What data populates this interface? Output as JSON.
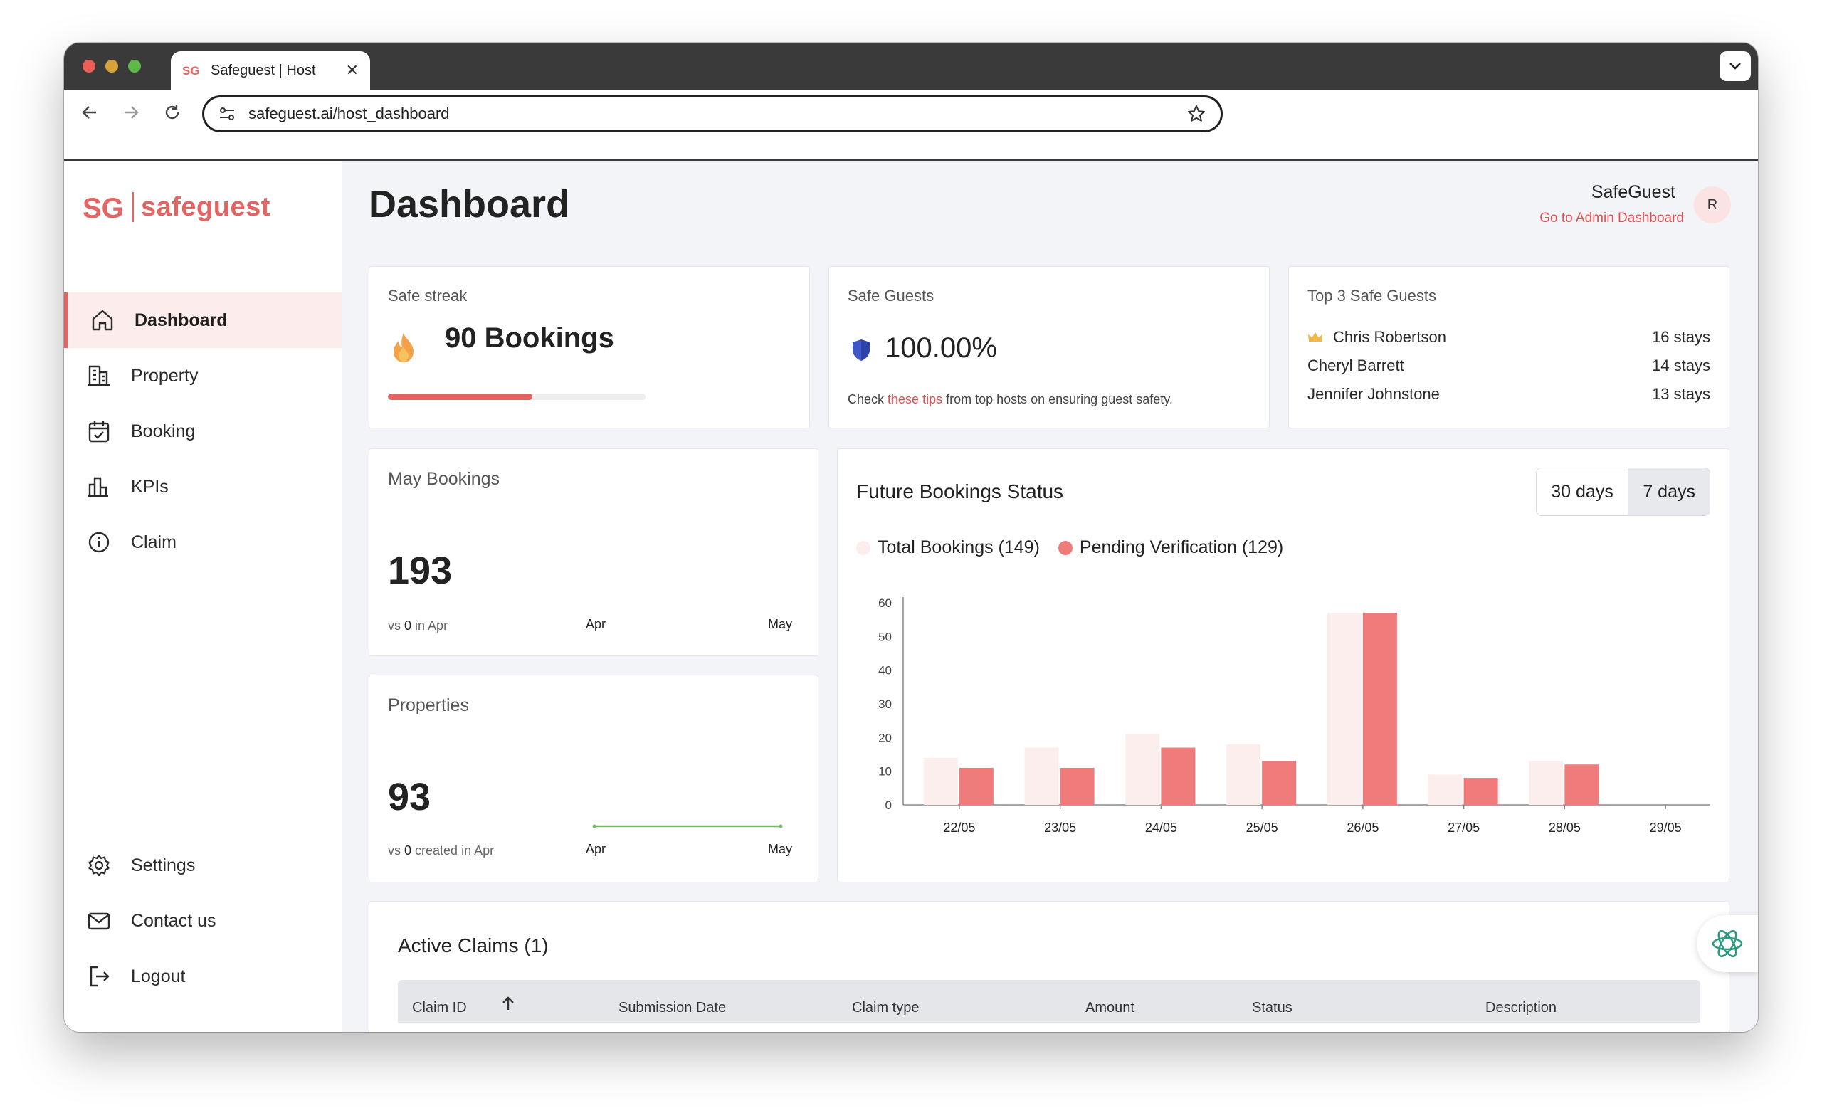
{
  "browser": {
    "tab_title": "Safeguest | Host",
    "url": "safeguest.ai/host_dashboard"
  },
  "sidebar": {
    "logo_text": "safeguest",
    "items": [
      {
        "label": "Dashboard",
        "icon": "home-icon",
        "active": true
      },
      {
        "label": "Property",
        "icon": "building-icon"
      },
      {
        "label": "Booking",
        "icon": "calendar-check-icon"
      },
      {
        "label": "KPIs",
        "icon": "bar-chart-icon"
      },
      {
        "label": "Claim",
        "icon": "info-circle-icon"
      }
    ],
    "bottom_items": [
      {
        "label": "Settings",
        "icon": "gear-icon"
      },
      {
        "label": "Contact us",
        "icon": "mail-icon"
      },
      {
        "label": "Logout",
        "icon": "logout-icon"
      }
    ]
  },
  "header": {
    "title": "Dashboard",
    "user_name": "SafeGuest",
    "admin_link": "Go to Admin Dashboard",
    "avatar_initial": "R"
  },
  "streak": {
    "label": "Safe streak",
    "value": "90 Bookings",
    "progress_fraction": 0.56
  },
  "safe_guests": {
    "label": "Safe Guests",
    "value": "100.00%",
    "tip_prefix": "Check ",
    "tip_link": "these tips",
    "tip_suffix": " from top hosts on ensuring guest safety."
  },
  "top_guests": {
    "label": "Top 3 Safe Guests",
    "guests": [
      {
        "name": "Chris Robertson",
        "stays": "16 stays"
      },
      {
        "name": "Cheryl Barrett",
        "stays": "14 stays"
      },
      {
        "name": "Jennifer Johnstone",
        "stays": "13 stays"
      }
    ]
  },
  "may_bookings": {
    "label": "May Bookings",
    "value": "193",
    "vs_prefix": "vs ",
    "vs_value": "0",
    "vs_suffix": " in Apr",
    "axis": [
      "Apr",
      "May"
    ]
  },
  "properties": {
    "label": "Properties",
    "value": "93",
    "vs_prefix": "vs ",
    "vs_value": "0",
    "vs_suffix": " created in Apr",
    "axis": [
      "Apr",
      "May"
    ]
  },
  "future_bookings": {
    "title": "Future Bookings Status",
    "toggle": [
      "30 days",
      "7 days"
    ],
    "selected_toggle": "7 days",
    "colors": {
      "total": "#fdeeee",
      "pending": "#ef7b7b"
    }
  },
  "chart_data": {
    "type": "bar",
    "categories": [
      "22/05",
      "23/05",
      "24/05",
      "25/05",
      "26/05",
      "27/05",
      "28/05",
      "29/05"
    ],
    "series": [
      {
        "name": "Total Bookings (149)",
        "values": [
          14,
          17,
          21,
          18,
          57,
          9,
          13,
          0
        ]
      },
      {
        "name": "Pending Verification (129)",
        "values": [
          11,
          11,
          17,
          13,
          57,
          8,
          12,
          0
        ]
      }
    ],
    "yticks": [
      0,
      10,
      20,
      30,
      40,
      50,
      60
    ],
    "ylim": [
      0,
      60
    ],
    "legend": "top-left",
    "grid": false
  },
  "claims": {
    "title": "Active Claims (1)",
    "columns": [
      "Claim ID",
      "Submission Date",
      "Claim type",
      "Amount",
      "Status",
      "Description"
    ]
  }
}
